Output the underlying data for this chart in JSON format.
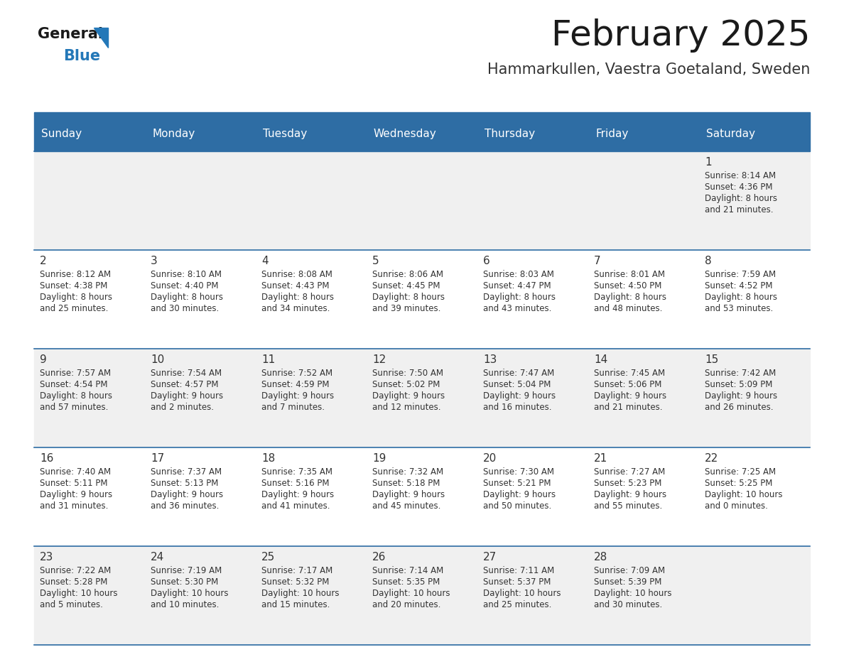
{
  "title": "February 2025",
  "subtitle": "Hammarkullen, Vaestra Goetaland, Sweden",
  "days_of_week": [
    "Sunday",
    "Monday",
    "Tuesday",
    "Wednesday",
    "Thursday",
    "Friday",
    "Saturday"
  ],
  "header_bg": "#2E6DA4",
  "header_text": "#FFFFFF",
  "cell_bg_light": "#F0F0F0",
  "cell_bg_white": "#FFFFFF",
  "divider_color": "#2E6DA4",
  "text_color": "#333333",
  "day_num_color": "#333333",
  "logo_general_color": "#1a1a1a",
  "logo_blue_color": "#2478B8",
  "calendar_data": [
    [
      null,
      null,
      null,
      null,
      null,
      null,
      {
        "day": 1,
        "sunrise": "8:14 AM",
        "sunset": "4:36 PM",
        "daylight_line1": "Daylight: 8 hours",
        "daylight_line2": "and 21 minutes."
      }
    ],
    [
      {
        "day": 2,
        "sunrise": "8:12 AM",
        "sunset": "4:38 PM",
        "daylight_line1": "Daylight: 8 hours",
        "daylight_line2": "and 25 minutes."
      },
      {
        "day": 3,
        "sunrise": "8:10 AM",
        "sunset": "4:40 PM",
        "daylight_line1": "Daylight: 8 hours",
        "daylight_line2": "and 30 minutes."
      },
      {
        "day": 4,
        "sunrise": "8:08 AM",
        "sunset": "4:43 PM",
        "daylight_line1": "Daylight: 8 hours",
        "daylight_line2": "and 34 minutes."
      },
      {
        "day": 5,
        "sunrise": "8:06 AM",
        "sunset": "4:45 PM",
        "daylight_line1": "Daylight: 8 hours",
        "daylight_line2": "and 39 minutes."
      },
      {
        "day": 6,
        "sunrise": "8:03 AM",
        "sunset": "4:47 PM",
        "daylight_line1": "Daylight: 8 hours",
        "daylight_line2": "and 43 minutes."
      },
      {
        "day": 7,
        "sunrise": "8:01 AM",
        "sunset": "4:50 PM",
        "daylight_line1": "Daylight: 8 hours",
        "daylight_line2": "and 48 minutes."
      },
      {
        "day": 8,
        "sunrise": "7:59 AM",
        "sunset": "4:52 PM",
        "daylight_line1": "Daylight: 8 hours",
        "daylight_line2": "and 53 minutes."
      }
    ],
    [
      {
        "day": 9,
        "sunrise": "7:57 AM",
        "sunset": "4:54 PM",
        "daylight_line1": "Daylight: 8 hours",
        "daylight_line2": "and 57 minutes."
      },
      {
        "day": 10,
        "sunrise": "7:54 AM",
        "sunset": "4:57 PM",
        "daylight_line1": "Daylight: 9 hours",
        "daylight_line2": "and 2 minutes."
      },
      {
        "day": 11,
        "sunrise": "7:52 AM",
        "sunset": "4:59 PM",
        "daylight_line1": "Daylight: 9 hours",
        "daylight_line2": "and 7 minutes."
      },
      {
        "day": 12,
        "sunrise": "7:50 AM",
        "sunset": "5:02 PM",
        "daylight_line1": "Daylight: 9 hours",
        "daylight_line2": "and 12 minutes."
      },
      {
        "day": 13,
        "sunrise": "7:47 AM",
        "sunset": "5:04 PM",
        "daylight_line1": "Daylight: 9 hours",
        "daylight_line2": "and 16 minutes."
      },
      {
        "day": 14,
        "sunrise": "7:45 AM",
        "sunset": "5:06 PM",
        "daylight_line1": "Daylight: 9 hours",
        "daylight_line2": "and 21 minutes."
      },
      {
        "day": 15,
        "sunrise": "7:42 AM",
        "sunset": "5:09 PM",
        "daylight_line1": "Daylight: 9 hours",
        "daylight_line2": "and 26 minutes."
      }
    ],
    [
      {
        "day": 16,
        "sunrise": "7:40 AM",
        "sunset": "5:11 PM",
        "daylight_line1": "Daylight: 9 hours",
        "daylight_line2": "and 31 minutes."
      },
      {
        "day": 17,
        "sunrise": "7:37 AM",
        "sunset": "5:13 PM",
        "daylight_line1": "Daylight: 9 hours",
        "daylight_line2": "and 36 minutes."
      },
      {
        "day": 18,
        "sunrise": "7:35 AM",
        "sunset": "5:16 PM",
        "daylight_line1": "Daylight: 9 hours",
        "daylight_line2": "and 41 minutes."
      },
      {
        "day": 19,
        "sunrise": "7:32 AM",
        "sunset": "5:18 PM",
        "daylight_line1": "Daylight: 9 hours",
        "daylight_line2": "and 45 minutes."
      },
      {
        "day": 20,
        "sunrise": "7:30 AM",
        "sunset": "5:21 PM",
        "daylight_line1": "Daylight: 9 hours",
        "daylight_line2": "and 50 minutes."
      },
      {
        "day": 21,
        "sunrise": "7:27 AM",
        "sunset": "5:23 PM",
        "daylight_line1": "Daylight: 9 hours",
        "daylight_line2": "and 55 minutes."
      },
      {
        "day": 22,
        "sunrise": "7:25 AM",
        "sunset": "5:25 PM",
        "daylight_line1": "Daylight: 10 hours",
        "daylight_line2": "and 0 minutes."
      }
    ],
    [
      {
        "day": 23,
        "sunrise": "7:22 AM",
        "sunset": "5:28 PM",
        "daylight_line1": "Daylight: 10 hours",
        "daylight_line2": "and 5 minutes."
      },
      {
        "day": 24,
        "sunrise": "7:19 AM",
        "sunset": "5:30 PM",
        "daylight_line1": "Daylight: 10 hours",
        "daylight_line2": "and 10 minutes."
      },
      {
        "day": 25,
        "sunrise": "7:17 AM",
        "sunset": "5:32 PM",
        "daylight_line1": "Daylight: 10 hours",
        "daylight_line2": "and 15 minutes."
      },
      {
        "day": 26,
        "sunrise": "7:14 AM",
        "sunset": "5:35 PM",
        "daylight_line1": "Daylight: 10 hours",
        "daylight_line2": "and 20 minutes."
      },
      {
        "day": 27,
        "sunrise": "7:11 AM",
        "sunset": "5:37 PM",
        "daylight_line1": "Daylight: 10 hours",
        "daylight_line2": "and 25 minutes."
      },
      {
        "day": 28,
        "sunrise": "7:09 AM",
        "sunset": "5:39 PM",
        "daylight_line1": "Daylight: 10 hours",
        "daylight_line2": "and 30 minutes."
      },
      null
    ]
  ]
}
